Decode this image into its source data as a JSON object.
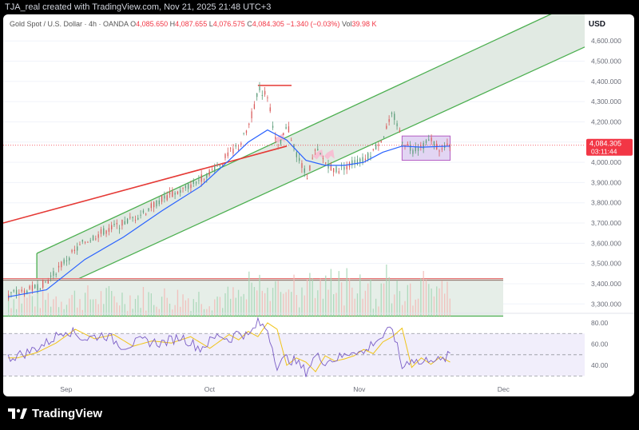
{
  "header": {
    "byline": "TJA_real created with TradingView.com, Nov 21, 2025 21:48 UTC+3"
  },
  "legend": {
    "symbol": "Gold Spot / U.S. Dollar · 4h · OANDA",
    "open_label": "O",
    "open": "4,085.650",
    "high_label": "H",
    "high": "4,087.655",
    "low_label": "L",
    "low": "4,076.575",
    "close_label": "C",
    "close": "4,084.305",
    "change": "−1.340 (−0.03%)",
    "vol_label": "Vol",
    "vol": "39.98 K"
  },
  "currency": "USD",
  "price_tag": {
    "price": "4,084.305",
    "countdown": "03:11:44"
  },
  "footer": {
    "logo_text": "TradingView"
  },
  "colors": {
    "channel_line": "#4caf50",
    "channel_fill": "#dfe9e2",
    "trend_line": "#e53935",
    "ma_line": "#2962ff",
    "up_candle": "#5b9c7a",
    "down_candle": "#d95c5c",
    "rsi_line": "#7b5ec6",
    "rsi_ma": "#f0c419",
    "price_tag": "#f23645",
    "box_fill": "#d9c8ef",
    "box_stroke": "#9c27b0"
  },
  "chart_data": {
    "type": "candlestick",
    "symbol": "XAUUSD",
    "interval": "4h",
    "price_axis": {
      "ticks": [
        4600,
        4500,
        4400,
        4300,
        4200,
        4100,
        4000,
        3900,
        3800,
        3700,
        3600,
        3500,
        3400,
        3300
      ],
      "tick_labels": [
        "4,600.000",
        "4,500.000",
        "4,400.000",
        "4,300.000",
        "4,200.000",
        "4,100.000",
        "4,000.000",
        "3,900.000",
        "3,800.000",
        "3,700.000",
        "3,600.000",
        "3,500.000",
        "3,400.000",
        "3,300.000"
      ],
      "range": [
        3230,
        4660
      ]
    },
    "time_axis": {
      "labels": [
        "Sep",
        "Oct",
        "Nov",
        "Dec"
      ],
      "range_days": [
        -1,
        120
      ],
      "label_days": [
        12,
        42,
        73,
        103
      ]
    },
    "rsi_axis": {
      "ticks": [
        80,
        60,
        40
      ],
      "tick_labels": [
        "80.00",
        "60.00",
        "40.00"
      ],
      "range": [
        28,
        86
      ],
      "bands": [
        70,
        30
      ]
    },
    "price_path": [
      [
        0,
        3345
      ],
      [
        4,
        3365
      ],
      [
        8,
        3410
      ],
      [
        12,
        3520
      ],
      [
        16,
        3610
      ],
      [
        20,
        3660
      ],
      [
        24,
        3700
      ],
      [
        28,
        3750
      ],
      [
        32,
        3820
      ],
      [
        36,
        3860
      ],
      [
        40,
        3920
      ],
      [
        44,
        3990
      ],
      [
        46,
        4050
      ],
      [
        48,
        4080
      ],
      [
        50,
        4180
      ],
      [
        52,
        4360
      ],
      [
        54,
        4330
      ],
      [
        56,
        4050
      ],
      [
        58,
        4180
      ],
      [
        60,
        4040
      ],
      [
        62,
        3930
      ],
      [
        64,
        4060
      ],
      [
        66,
        4000
      ],
      [
        68,
        3960
      ],
      [
        70,
        3980
      ],
      [
        72,
        4000
      ],
      [
        74,
        4010
      ],
      [
        76,
        4060
      ],
      [
        78,
        4130
      ],
      [
        80,
        4240
      ],
      [
        82,
        4110
      ],
      [
        84,
        4060
      ],
      [
        86,
        4080
      ],
      [
        88,
        4110
      ],
      [
        90,
        4060
      ],
      [
        92,
        4084
      ]
    ],
    "moving_average": [
      [
        0,
        3335
      ],
      [
        8,
        3370
      ],
      [
        16,
        3520
      ],
      [
        24,
        3630
      ],
      [
        32,
        3760
      ],
      [
        40,
        3880
      ],
      [
        46,
        4010
      ],
      [
        50,
        4100
      ],
      [
        54,
        4160
      ],
      [
        58,
        4110
      ],
      [
        62,
        4010
      ],
      [
        66,
        3985
      ],
      [
        70,
        3985
      ],
      [
        74,
        4000
      ],
      [
        78,
        4050
      ],
      [
        82,
        4080
      ],
      [
        86,
        4075
      ],
      [
        92,
        4080
      ]
    ],
    "channel": {
      "lower": [
        [
          6,
          3330
        ],
        [
          120,
          4570
        ]
      ],
      "upper": [
        [
          6,
          3550
        ],
        [
          120,
          4810
        ]
      ]
    },
    "red_trendline": [
      [
        -1,
        3700
      ],
      [
        58,
        4080
      ]
    ],
    "resistance_line": {
      "price": 4380,
      "from_day": 52,
      "to_day": 59
    },
    "consolidation_box": {
      "top": 4130,
      "bottom": 4010,
      "from_day": 82,
      "to_day": 92
    },
    "volume_zone": {
      "top": 3425,
      "bottom": 3240
    },
    "rsi": [
      [
        0,
        47
      ],
      [
        4,
        52
      ],
      [
        8,
        61
      ],
      [
        12,
        74
      ],
      [
        16,
        65
      ],
      [
        20,
        69
      ],
      [
        24,
        58
      ],
      [
        28,
        63
      ],
      [
        32,
        61
      ],
      [
        36,
        67
      ],
      [
        40,
        56
      ],
      [
        44,
        69
      ],
      [
        46,
        64
      ],
      [
        48,
        72
      ],
      [
        50,
        67
      ],
      [
        52,
        80
      ],
      [
        54,
        74
      ],
      [
        56,
        40
      ],
      [
        58,
        47
      ],
      [
        60,
        43
      ],
      [
        62,
        34
      ],
      [
        64,
        49
      ],
      [
        66,
        44
      ],
      [
        68,
        46
      ],
      [
        70,
        49
      ],
      [
        72,
        55
      ],
      [
        74,
        51
      ],
      [
        76,
        62
      ],
      [
        78,
        67
      ],
      [
        80,
        75
      ],
      [
        82,
        38
      ],
      [
        84,
        47
      ],
      [
        86,
        41
      ],
      [
        88,
        48
      ],
      [
        90,
        43
      ],
      [
        92,
        50
      ]
    ]
  }
}
